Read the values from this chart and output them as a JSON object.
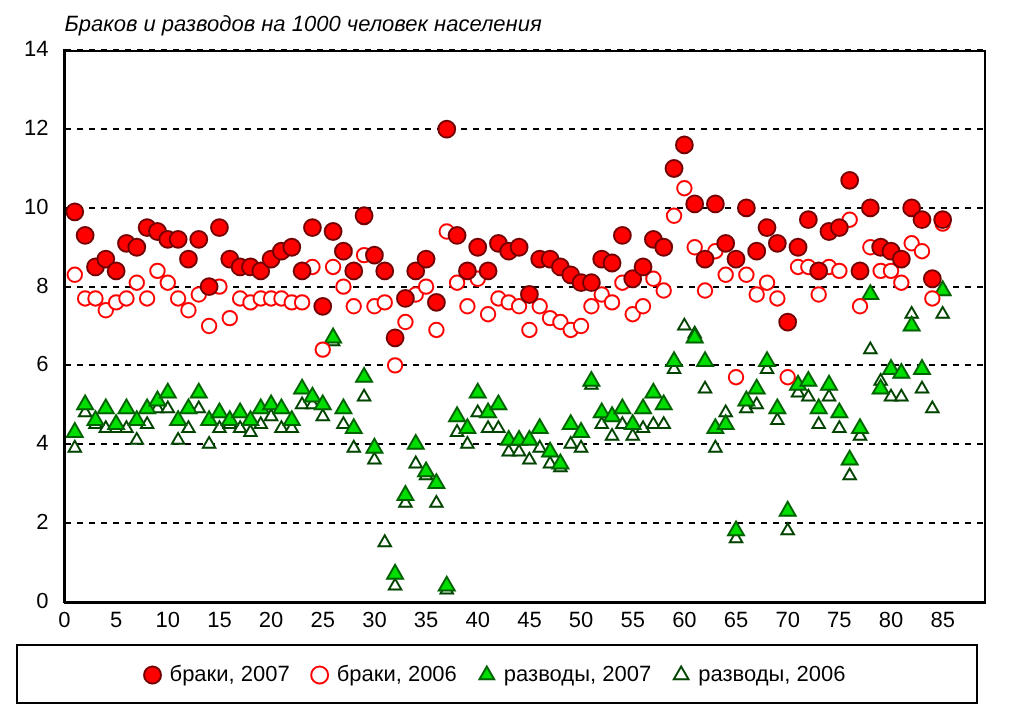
{
  "chart_data": {
    "type": "scatter",
    "title": "Браков и разводов на 1000 человек населения",
    "x": [
      1,
      2,
      3,
      4,
      5,
      6,
      7,
      8,
      9,
      10,
      11,
      12,
      13,
      14,
      15,
      16,
      17,
      18,
      19,
      20,
      21,
      22,
      23,
      24,
      25,
      26,
      27,
      28,
      29,
      30,
      31,
      32,
      33,
      34,
      35,
      36,
      37,
      38,
      39,
      40,
      41,
      42,
      43,
      44,
      45,
      46,
      47,
      48,
      49,
      50,
      51,
      52,
      53,
      54,
      55,
      56,
      57,
      58,
      59,
      60,
      61,
      62,
      63,
      64,
      65,
      66,
      67,
      68,
      69,
      70,
      71,
      72,
      73,
      74,
      75,
      76,
      77,
      78,
      79,
      80,
      81,
      82,
      83,
      84,
      85
    ],
    "series": [
      {
        "name": "браки, 2007",
        "color": "#ff0000",
        "marker": "circle",
        "values": [
          9.9,
          9.3,
          8.5,
          8.7,
          8.4,
          9.1,
          9.0,
          9.5,
          9.4,
          9.2,
          9.2,
          8.7,
          9.2,
          8.0,
          9.5,
          8.7,
          8.5,
          8.5,
          8.4,
          8.7,
          8.9,
          9.0,
          8.4,
          9.5,
          7.5,
          9.4,
          8.9,
          8.4,
          9.8,
          8.8,
          8.4,
          6.7,
          7.7,
          8.4,
          8.7,
          7.6,
          12.0,
          9.3,
          8.4,
          9.0,
          8.4,
          9.1,
          8.9,
          9.0,
          7.8,
          8.7,
          8.7,
          8.5,
          8.3,
          8.1,
          8.1,
          8.7,
          8.6,
          9.3,
          8.2,
          8.5,
          9.2,
          9.0,
          11.0,
          11.6,
          10.1,
          8.7,
          10.1,
          9.1,
          8.7,
          10.0,
          8.9,
          9.5,
          9.1,
          7.1,
          9.0,
          9.7,
          8.4,
          9.4,
          9.5,
          10.7,
          8.4,
          10.0,
          9.0,
          8.9,
          8.7,
          10.0,
          9.7,
          8.2,
          9.7
        ]
      },
      {
        "name": "браки, 2006",
        "color": "#ff0000",
        "marker": "circle",
        "values": [
          8.3,
          7.7,
          7.7,
          7.4,
          7.6,
          7.7,
          8.1,
          7.7,
          8.4,
          8.1,
          7.7,
          7.4,
          7.8,
          7.0,
          8.0,
          7.2,
          7.7,
          7.6,
          7.7,
          7.7,
          7.7,
          7.6,
          7.6,
          8.5,
          6.4,
          8.5,
          8.0,
          7.5,
          8.8,
          7.5,
          7.6,
          6.0,
          7.1,
          7.8,
          8.0,
          6.9,
          9.4,
          8.1,
          7.5,
          8.2,
          7.3,
          7.7,
          7.6,
          7.5,
          6.9,
          7.5,
          7.2,
          7.1,
          6.9,
          7.0,
          7.5,
          7.8,
          7.6,
          8.1,
          7.3,
          7.5,
          8.2,
          7.9,
          9.8,
          10.5,
          9.0,
          7.9,
          8.9,
          8.3,
          5.7,
          8.3,
          7.8,
          8.1,
          7.7,
          5.7,
          8.5,
          8.5,
          7.8,
          8.5,
          8.4,
          9.7,
          7.5,
          9.0,
          8.4,
          8.4,
          8.1,
          9.1,
          8.9,
          7.7,
          9.6
        ]
      },
      {
        "name": "разводы, 2007",
        "color": "#00dd00",
        "marker": "triangle",
        "values": [
          4.3,
          5.0,
          4.6,
          4.9,
          4.5,
          4.9,
          4.6,
          4.9,
          5.1,
          5.3,
          4.6,
          4.9,
          5.3,
          4.6,
          4.8,
          4.6,
          4.8,
          4.6,
          4.9,
          5.0,
          4.9,
          4.6,
          5.4,
          5.2,
          5.0,
          6.7,
          4.9,
          4.4,
          5.7,
          3.9,
          null,
          0.7,
          2.7,
          4.0,
          3.3,
          3.0,
          0.4,
          4.7,
          4.4,
          5.3,
          4.8,
          5.0,
          4.1,
          4.1,
          4.1,
          4.4,
          3.8,
          3.5,
          4.5,
          4.3,
          5.6,
          4.8,
          4.7,
          4.9,
          4.5,
          4.9,
          5.3,
          5.0,
          6.1,
          null,
          6.7,
          6.1,
          4.4,
          4.5,
          1.8,
          5.1,
          5.4,
          6.1,
          4.9,
          2.3,
          5.5,
          5.6,
          4.9,
          5.5,
          4.8,
          3.6,
          4.4,
          7.8,
          5.4,
          5.9,
          5.8,
          7.0,
          5.9,
          null,
          7.9
        ]
      },
      {
        "name": "разводы, 2006",
        "color": "#004400",
        "marker": "triangle",
        "values": [
          3.9,
          4.8,
          4.5,
          4.4,
          4.4,
          4.4,
          4.1,
          4.5,
          4.9,
          4.9,
          4.1,
          4.4,
          4.9,
          4.0,
          4.4,
          4.5,
          4.4,
          4.3,
          4.5,
          4.7,
          4.4,
          4.4,
          5.0,
          5.0,
          4.7,
          6.6,
          4.5,
          3.9,
          5.2,
          3.6,
          1.5,
          0.4,
          2.5,
          3.5,
          3.2,
          2.5,
          0.3,
          4.3,
          4.0,
          4.8,
          4.4,
          4.4,
          3.8,
          3.8,
          3.6,
          3.9,
          3.5,
          3.4,
          4.0,
          3.9,
          5.5,
          4.5,
          4.2,
          4.5,
          4.2,
          4.4,
          4.5,
          4.5,
          5.9,
          7.0,
          6.8,
          5.4,
          3.9,
          4.8,
          1.6,
          4.9,
          5.0,
          5.9,
          4.6,
          1.8,
          5.3,
          5.2,
          4.5,
          5.2,
          4.4,
          3.2,
          4.2,
          6.4,
          5.6,
          5.2,
          5.2,
          7.3,
          5.4,
          4.9,
          7.3
        ]
      }
    ],
    "xlim": [
      0,
      89
    ],
    "xticks": [
      0,
      5,
      10,
      15,
      20,
      25,
      30,
      35,
      40,
      45,
      50,
      55,
      60,
      65,
      70,
      75,
      80,
      85
    ],
    "ylim": [
      0,
      14
    ],
    "yticks": [
      0,
      2,
      4,
      6,
      8,
      10,
      12,
      14
    ],
    "grid": "y",
    "legend": "bottom"
  }
}
